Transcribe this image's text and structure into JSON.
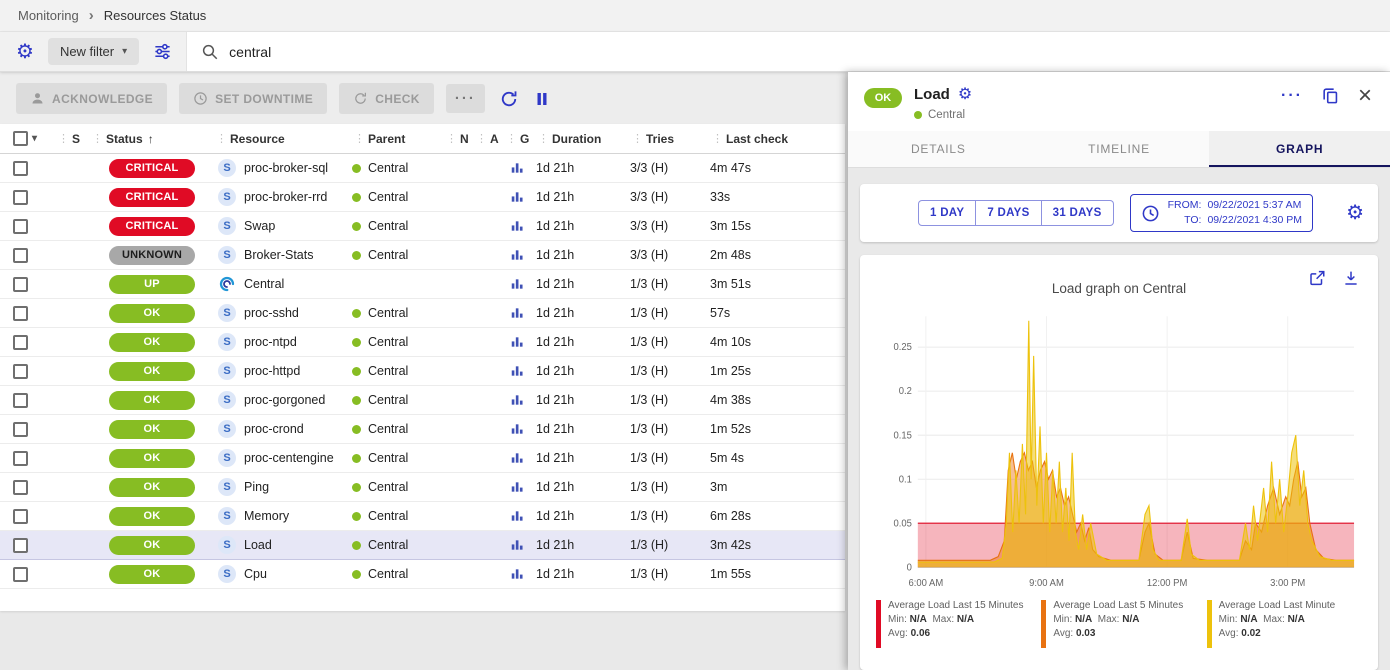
{
  "colors": {
    "accent": "#2f38c7",
    "critical": "#e00b25",
    "unknown": "#a8a8a8",
    "ok": "#87bd23",
    "tab_active": "#15155e"
  },
  "breadcrumb": {
    "items": [
      "Monitoring",
      "Resources Status"
    ]
  },
  "filter_bar": {
    "new_filter_label": "New filter",
    "search_value": "central"
  },
  "toolbar": {
    "acknowledge_label": "ACKNOWLEDGE",
    "set_downtime_label": "SET DOWNTIME",
    "check_label": "CHECK",
    "more_label": "···"
  },
  "table": {
    "columns": [
      "S",
      "Status",
      "Resource",
      "Parent",
      "N",
      "A",
      "G",
      "Duration",
      "Tries",
      "Last check"
    ],
    "rows": [
      {
        "status": "CRITICAL",
        "severity": "critical",
        "type": "service",
        "resource": "proc-broker-sql",
        "parent": "Central",
        "duration": "1d 21h",
        "tries": "3/3 (H)",
        "last_check": "4m 47s",
        "selected": false
      },
      {
        "status": "CRITICAL",
        "severity": "critical",
        "type": "service",
        "resource": "proc-broker-rrd",
        "parent": "Central",
        "duration": "1d 21h",
        "tries": "3/3 (H)",
        "last_check": "33s",
        "selected": false
      },
      {
        "status": "CRITICAL",
        "severity": "critical",
        "type": "service",
        "resource": "Swap",
        "parent": "Central",
        "duration": "1d 21h",
        "tries": "3/3 (H)",
        "last_check": "3m 15s",
        "selected": false
      },
      {
        "status": "UNKNOWN",
        "severity": "unknown",
        "type": "service",
        "resource": "Broker-Stats",
        "parent": "Central",
        "duration": "1d 21h",
        "tries": "3/3 (H)",
        "last_check": "2m 48s",
        "selected": false
      },
      {
        "status": "UP",
        "severity": "up",
        "type": "host",
        "resource": "Central",
        "parent": "",
        "duration": "1d 21h",
        "tries": "1/3 (H)",
        "last_check": "3m 51s",
        "selected": false
      },
      {
        "status": "OK",
        "severity": "ok",
        "type": "service",
        "resource": "proc-sshd",
        "parent": "Central",
        "duration": "1d 21h",
        "tries": "1/3 (H)",
        "last_check": "57s",
        "selected": false
      },
      {
        "status": "OK",
        "severity": "ok",
        "type": "service",
        "resource": "proc-ntpd",
        "parent": "Central",
        "duration": "1d 21h",
        "tries": "1/3 (H)",
        "last_check": "4m 10s",
        "selected": false
      },
      {
        "status": "OK",
        "severity": "ok",
        "type": "service",
        "resource": "proc-httpd",
        "parent": "Central",
        "duration": "1d 21h",
        "tries": "1/3 (H)",
        "last_check": "1m 25s",
        "selected": false
      },
      {
        "status": "OK",
        "severity": "ok",
        "type": "service",
        "resource": "proc-gorgoned",
        "parent": "Central",
        "duration": "1d 21h",
        "tries": "1/3 (H)",
        "last_check": "4m 38s",
        "selected": false
      },
      {
        "status": "OK",
        "severity": "ok",
        "type": "service",
        "resource": "proc-crond",
        "parent": "Central",
        "duration": "1d 21h",
        "tries": "1/3 (H)",
        "last_check": "1m 52s",
        "selected": false
      },
      {
        "status": "OK",
        "severity": "ok",
        "type": "service",
        "resource": "proc-centengine",
        "parent": "Central",
        "duration": "1d 21h",
        "tries": "1/3 (H)",
        "last_check": "5m 4s",
        "selected": false
      },
      {
        "status": "OK",
        "severity": "ok",
        "type": "service",
        "resource": "Ping",
        "parent": "Central",
        "duration": "1d 21h",
        "tries": "1/3 (H)",
        "last_check": "3m",
        "selected": false
      },
      {
        "status": "OK",
        "severity": "ok",
        "type": "service",
        "resource": "Memory",
        "parent": "Central",
        "duration": "1d 21h",
        "tries": "1/3 (H)",
        "last_check": "6m 28s",
        "selected": false
      },
      {
        "status": "OK",
        "severity": "ok",
        "type": "service",
        "resource": "Load",
        "parent": "Central",
        "duration": "1d 21h",
        "tries": "1/3 (H)",
        "last_check": "3m 42s",
        "selected": true
      },
      {
        "status": "OK",
        "severity": "ok",
        "type": "service",
        "resource": "Cpu",
        "parent": "Central",
        "duration": "1d 21h",
        "tries": "1/3 (H)",
        "last_check": "1m 55s",
        "selected": false
      }
    ]
  },
  "panel": {
    "status": "OK",
    "title": "Load",
    "host": "Central",
    "tabs": [
      "DETAILS",
      "TIMELINE",
      "GRAPH"
    ],
    "active_tab": "GRAPH",
    "range_buttons": [
      "1 DAY",
      "7 DAYS",
      "31 DAYS"
    ],
    "time_range": {
      "from_label": "FROM:",
      "from_value": "09/22/2021 5:37 AM",
      "to_label": "TO:",
      "to_value": "09/22/2021 4:30 PM"
    }
  },
  "chart_data": {
    "type": "area",
    "title": "Load graph on Central",
    "x_unit": "hour_of_day",
    "xlim": [
      5.8,
      16.65
    ],
    "ylim": [
      0,
      0.285
    ],
    "yticks": [
      0,
      0.05,
      0.1,
      0.15,
      0.2,
      0.25
    ],
    "xticks": [
      {
        "value": 6,
        "label": "6:00 AM"
      },
      {
        "value": 9,
        "label": "9:00 AM"
      },
      {
        "value": 12,
        "label": "12:00 PM"
      },
      {
        "value": 15,
        "label": "3:00 PM"
      }
    ],
    "legend_labels": {
      "min": "Min:",
      "max": "Max:",
      "avg": "Avg:"
    },
    "series": [
      {
        "name": "Average Load Last 15 Minutes",
        "color": "#e00b25",
        "fill_opacity": 0.3,
        "min": "N/A",
        "max": "N/A",
        "avg": "0.06",
        "points": [
          [
            5.8,
            0.05
          ],
          [
            16.65,
            0.05
          ]
        ]
      },
      {
        "name": "Average Load Last 5 Minutes",
        "color": "#e87211",
        "fill_opacity": 0.45,
        "min": "N/A",
        "max": "N/A",
        "avg": "0.03",
        "points": [
          [
            5.8,
            0.008
          ],
          [
            7.6,
            0.008
          ],
          [
            7.8,
            0.012
          ],
          [
            7.95,
            0.03
          ],
          [
            8.05,
            0.11
          ],
          [
            8.15,
            0.13
          ],
          [
            8.25,
            0.1
          ],
          [
            8.35,
            0.12
          ],
          [
            8.45,
            0.13
          ],
          [
            8.55,
            0.11
          ],
          [
            8.65,
            0.12
          ],
          [
            8.75,
            0.09
          ],
          [
            8.85,
            0.11
          ],
          [
            8.95,
            0.12
          ],
          [
            9.05,
            0.1
          ],
          [
            9.15,
            0.11
          ],
          [
            9.25,
            0.08
          ],
          [
            9.35,
            0.09
          ],
          [
            9.45,
            0.07
          ],
          [
            9.55,
            0.08
          ],
          [
            9.65,
            0.06
          ],
          [
            9.75,
            0.04
          ],
          [
            9.85,
            0.05
          ],
          [
            9.95,
            0.03
          ],
          [
            10.05,
            0.045
          ],
          [
            10.15,
            0.02
          ],
          [
            10.3,
            0.012
          ],
          [
            10.6,
            0.008
          ],
          [
            11.3,
            0.008
          ],
          [
            11.45,
            0.04
          ],
          [
            11.55,
            0.05
          ],
          [
            11.7,
            0.015
          ],
          [
            11.9,
            0.008
          ],
          [
            12.35,
            0.008
          ],
          [
            12.5,
            0.04
          ],
          [
            12.65,
            0.01
          ],
          [
            13.0,
            0.008
          ],
          [
            13.8,
            0.008
          ],
          [
            13.95,
            0.03
          ],
          [
            14.1,
            0.02
          ],
          [
            14.2,
            0.05
          ],
          [
            14.35,
            0.04
          ],
          [
            14.5,
            0.07
          ],
          [
            14.65,
            0.09
          ],
          [
            14.8,
            0.06
          ],
          [
            14.95,
            0.08
          ],
          [
            15.05,
            0.07
          ],
          [
            15.15,
            0.1
          ],
          [
            15.25,
            0.12
          ],
          [
            15.35,
            0.08
          ],
          [
            15.45,
            0.09
          ],
          [
            15.55,
            0.05
          ],
          [
            15.7,
            0.02
          ],
          [
            15.9,
            0.01
          ],
          [
            16.2,
            0.008
          ],
          [
            16.65,
            0.008
          ]
        ]
      },
      {
        "name": "Average Load Last Minute",
        "color": "#edc20c",
        "fill_opacity": 0.55,
        "min": "N/A",
        "max": "N/A",
        "avg": "0.02",
        "points": [
          [
            5.8,
            0.006
          ],
          [
            7.7,
            0.006
          ],
          [
            7.9,
            0.01
          ],
          [
            8.0,
            0.05
          ],
          [
            8.08,
            0.13
          ],
          [
            8.16,
            0.04
          ],
          [
            8.24,
            0.11
          ],
          [
            8.32,
            0.05
          ],
          [
            8.4,
            0.14
          ],
          [
            8.48,
            0.06
          ],
          [
            8.56,
            0.28
          ],
          [
            8.62,
            0.1
          ],
          [
            8.68,
            0.24
          ],
          [
            8.76,
            0.07
          ],
          [
            8.84,
            0.16
          ],
          [
            8.92,
            0.05
          ],
          [
            9.0,
            0.13
          ],
          [
            9.08,
            0.04
          ],
          [
            9.16,
            0.11
          ],
          [
            9.24,
            0.05
          ],
          [
            9.32,
            0.12
          ],
          [
            9.4,
            0.04
          ],
          [
            9.48,
            0.09
          ],
          [
            9.56,
            0.03
          ],
          [
            9.64,
            0.13
          ],
          [
            9.72,
            0.04
          ],
          [
            9.8,
            0.02
          ],
          [
            9.9,
            0.06
          ],
          [
            10.0,
            0.02
          ],
          [
            10.1,
            0.05
          ],
          [
            10.25,
            0.015
          ],
          [
            10.5,
            0.008
          ],
          [
            11.3,
            0.008
          ],
          [
            11.45,
            0.06
          ],
          [
            11.55,
            0.07
          ],
          [
            11.65,
            0.02
          ],
          [
            11.8,
            0.008
          ],
          [
            12.35,
            0.008
          ],
          [
            12.5,
            0.055
          ],
          [
            12.6,
            0.015
          ],
          [
            12.8,
            0.008
          ],
          [
            13.8,
            0.008
          ],
          [
            13.95,
            0.05
          ],
          [
            14.05,
            0.02
          ],
          [
            14.15,
            0.07
          ],
          [
            14.25,
            0.03
          ],
          [
            14.4,
            0.09
          ],
          [
            14.5,
            0.04
          ],
          [
            14.6,
            0.12
          ],
          [
            14.7,
            0.05
          ],
          [
            14.8,
            0.1
          ],
          [
            14.9,
            0.04
          ],
          [
            15.0,
            0.08
          ],
          [
            15.1,
            0.13
          ],
          [
            15.2,
            0.15
          ],
          [
            15.3,
            0.07
          ],
          [
            15.4,
            0.11
          ],
          [
            15.5,
            0.05
          ],
          [
            15.6,
            0.03
          ],
          [
            15.8,
            0.012
          ],
          [
            16.1,
            0.008
          ],
          [
            16.65,
            0.008
          ]
        ]
      }
    ]
  }
}
